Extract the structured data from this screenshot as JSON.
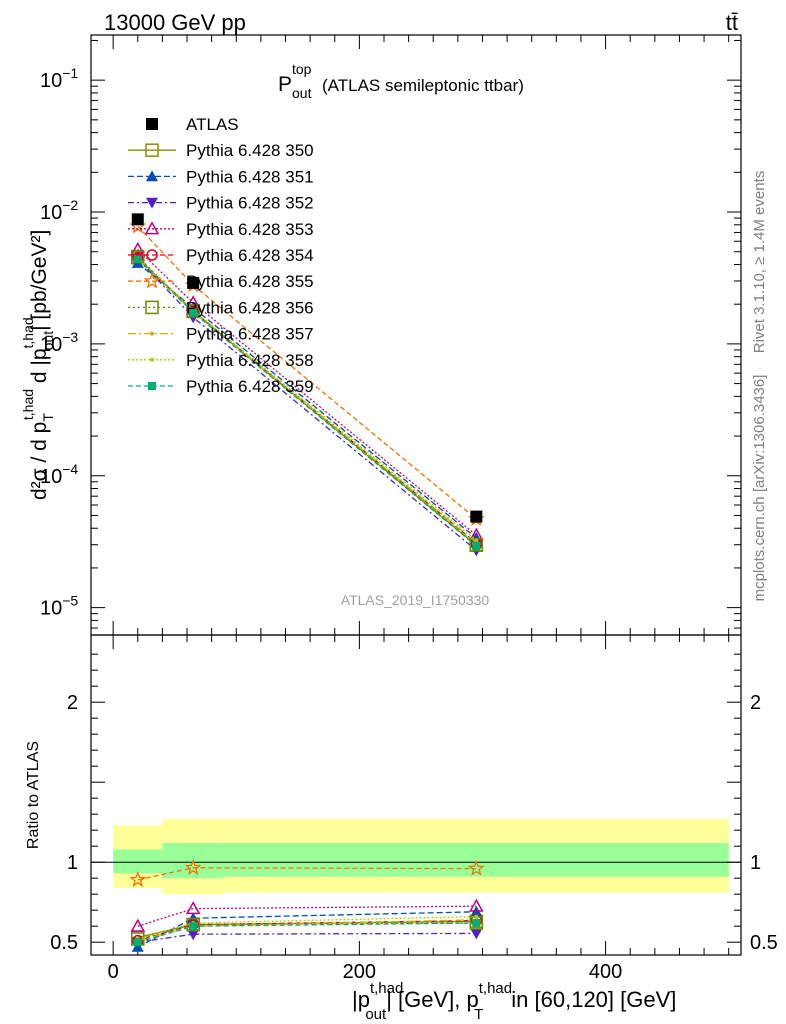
{
  "header": {
    "energy_label": "13000 GeV pp",
    "process_label": "tt̄"
  },
  "main_title": {
    "symbol": "P",
    "sup": "top",
    "sub": "out",
    "rest": "(ATLAS semileptonic ttbar)"
  },
  "side_labels": {
    "rivet": "Rivet 3.1.10, ≥ 1.4M events",
    "mcplots": "mcplots.cern.ch [arXiv:1306.3436]"
  },
  "watermark": "ATLAS_2019_I1750330",
  "axes": {
    "ylabel_main": {
      "d2sigma": "d²σ / d p",
      "T": "T",
      "t_had": "t,had",
      "d": " d |p",
      "out": "out",
      "unit": "| [pb/GeV²]"
    },
    "ylabel_ratio": "Ratio to ATLAS",
    "xlabel": {
      "p": "|p",
      "t_had": "t,had",
      "out": "out",
      "mid": "| [GeV], p",
      "T": "T",
      "tail": "in [60,120] [GeV]"
    },
    "main_yticks": [
      {
        "mant": "10",
        "exp": "−1",
        "value": 0.1
      },
      {
        "mant": "10",
        "exp": "−2",
        "value": 0.01
      },
      {
        "mant": "10",
        "exp": "−3",
        "value": 0.001
      },
      {
        "mant": "10",
        "exp": "−4",
        "value": 0.0001
      },
      {
        "mant": "10",
        "exp": "−5",
        "value": 1e-05
      }
    ],
    "ratio_yticks": [
      {
        "label": "2",
        "value": 2
      },
      {
        "label": "1",
        "value": 1
      },
      {
        "label": "0.5",
        "value": 0.5
      }
    ],
    "xticks": [
      {
        "label": "0",
        "value": 0
      },
      {
        "label": "200",
        "value": 200
      },
      {
        "label": "400",
        "value": 400
      }
    ]
  },
  "chart_data": {
    "type": "line",
    "x_log": false,
    "y_log": true,
    "xlim": [
      -18,
      510
    ],
    "ylim": [
      6.2e-06,
      0.22
    ],
    "ratio_ylim": [
      0.42,
      2.42
    ],
    "x_bins": [
      [
        0,
        40
      ],
      [
        40,
        90
      ],
      [
        90,
        500
      ]
    ],
    "x": [
      20,
      65,
      295
    ],
    "atlas": {
      "name": "ATLAS",
      "values": [
        0.0088,
        0.0029,
        4.9e-05
      ],
      "ratio_band_inner": [
        [
          0.93,
          1.08
        ],
        [
          0.9,
          1.12
        ],
        [
          0.91,
          1.12
        ]
      ],
      "ratio_band_outer": [
        [
          0.84,
          1.23
        ],
        [
          0.8,
          1.27
        ],
        [
          0.81,
          1.27
        ]
      ]
    },
    "series": [
      {
        "name": "Pythia 6.428 350",
        "color": "#8b8b00",
        "marker": "square-open",
        "dash": "",
        "values": [
          0.0045,
          0.00176,
          2.97e-05
        ],
        "ratio": [
          0.53,
          0.61,
          0.63
        ]
      },
      {
        "name": "Pythia 6.428 351",
        "color": "#0050b4",
        "marker": "triangle-up",
        "dash": "6,3",
        "values": [
          0.0041,
          0.00188,
          3.37e-05
        ],
        "ratio": [
          0.47,
          0.65,
          0.69
        ]
      },
      {
        "name": "Pythia 6.428 352",
        "color": "#5020c0",
        "marker": "triangle-down",
        "dash": "6,3,2,3",
        "values": [
          0.0044,
          0.00159,
          2.72e-05
        ],
        "ratio": [
          0.5,
          0.55,
          0.555
        ]
      },
      {
        "name": "Pythia 6.428 353",
        "color": "#c0008c",
        "marker": "triangle-up-open",
        "dash": "2,2",
        "values": [
          0.0052,
          0.00205,
          3.54e-05
        ],
        "ratio": [
          0.6,
          0.71,
          0.725
        ]
      },
      {
        "name": "Pythia 6.428 354",
        "color": "#e0001a",
        "marker": "circle-open",
        "dash": "5,3",
        "values": [
          0.0045,
          0.00177,
          3.09e-05
        ],
        "ratio": [
          0.51,
          0.61,
          0.635
        ]
      },
      {
        "name": "Pythia 6.428 355",
        "color": "#f07000",
        "marker": "star",
        "dash": "5,3",
        "values": [
          0.0078,
          0.00279,
          4.71e-05
        ],
        "ratio": [
          0.89,
          0.965,
          0.96
        ]
      },
      {
        "name": "Pythia 6.428 356",
        "color": "#6a8a00",
        "marker": "square-open",
        "dash": "2,3",
        "values": [
          0.0046,
          0.00178,
          3e-05
        ],
        "ratio": [
          0.52,
          0.61,
          0.62
        ]
      },
      {
        "name": "Pythia 6.428 357",
        "color": "#c8b400",
        "marker": "dot-small",
        "dash": "8,3,2,3",
        "values": [
          0.0044,
          0.00175,
          3.12e-05
        ],
        "ratio": [
          0.51,
          0.6,
          0.64
        ]
      },
      {
        "name": "Pythia 6.428 358",
        "color": "#a8d000",
        "marker": "dot-small",
        "dash": "2,2",
        "values": [
          0.0045,
          0.0018,
          3.23e-05
        ],
        "ratio": [
          0.52,
          0.62,
          0.66
        ]
      },
      {
        "name": "Pythia 6.428 359",
        "color": "#00b070",
        "marker": "square",
        "dash": "5,3",
        "values": [
          0.0044,
          0.00173,
          2.94e-05
        ],
        "ratio": [
          0.5,
          0.6,
          0.62
        ]
      }
    ]
  }
}
